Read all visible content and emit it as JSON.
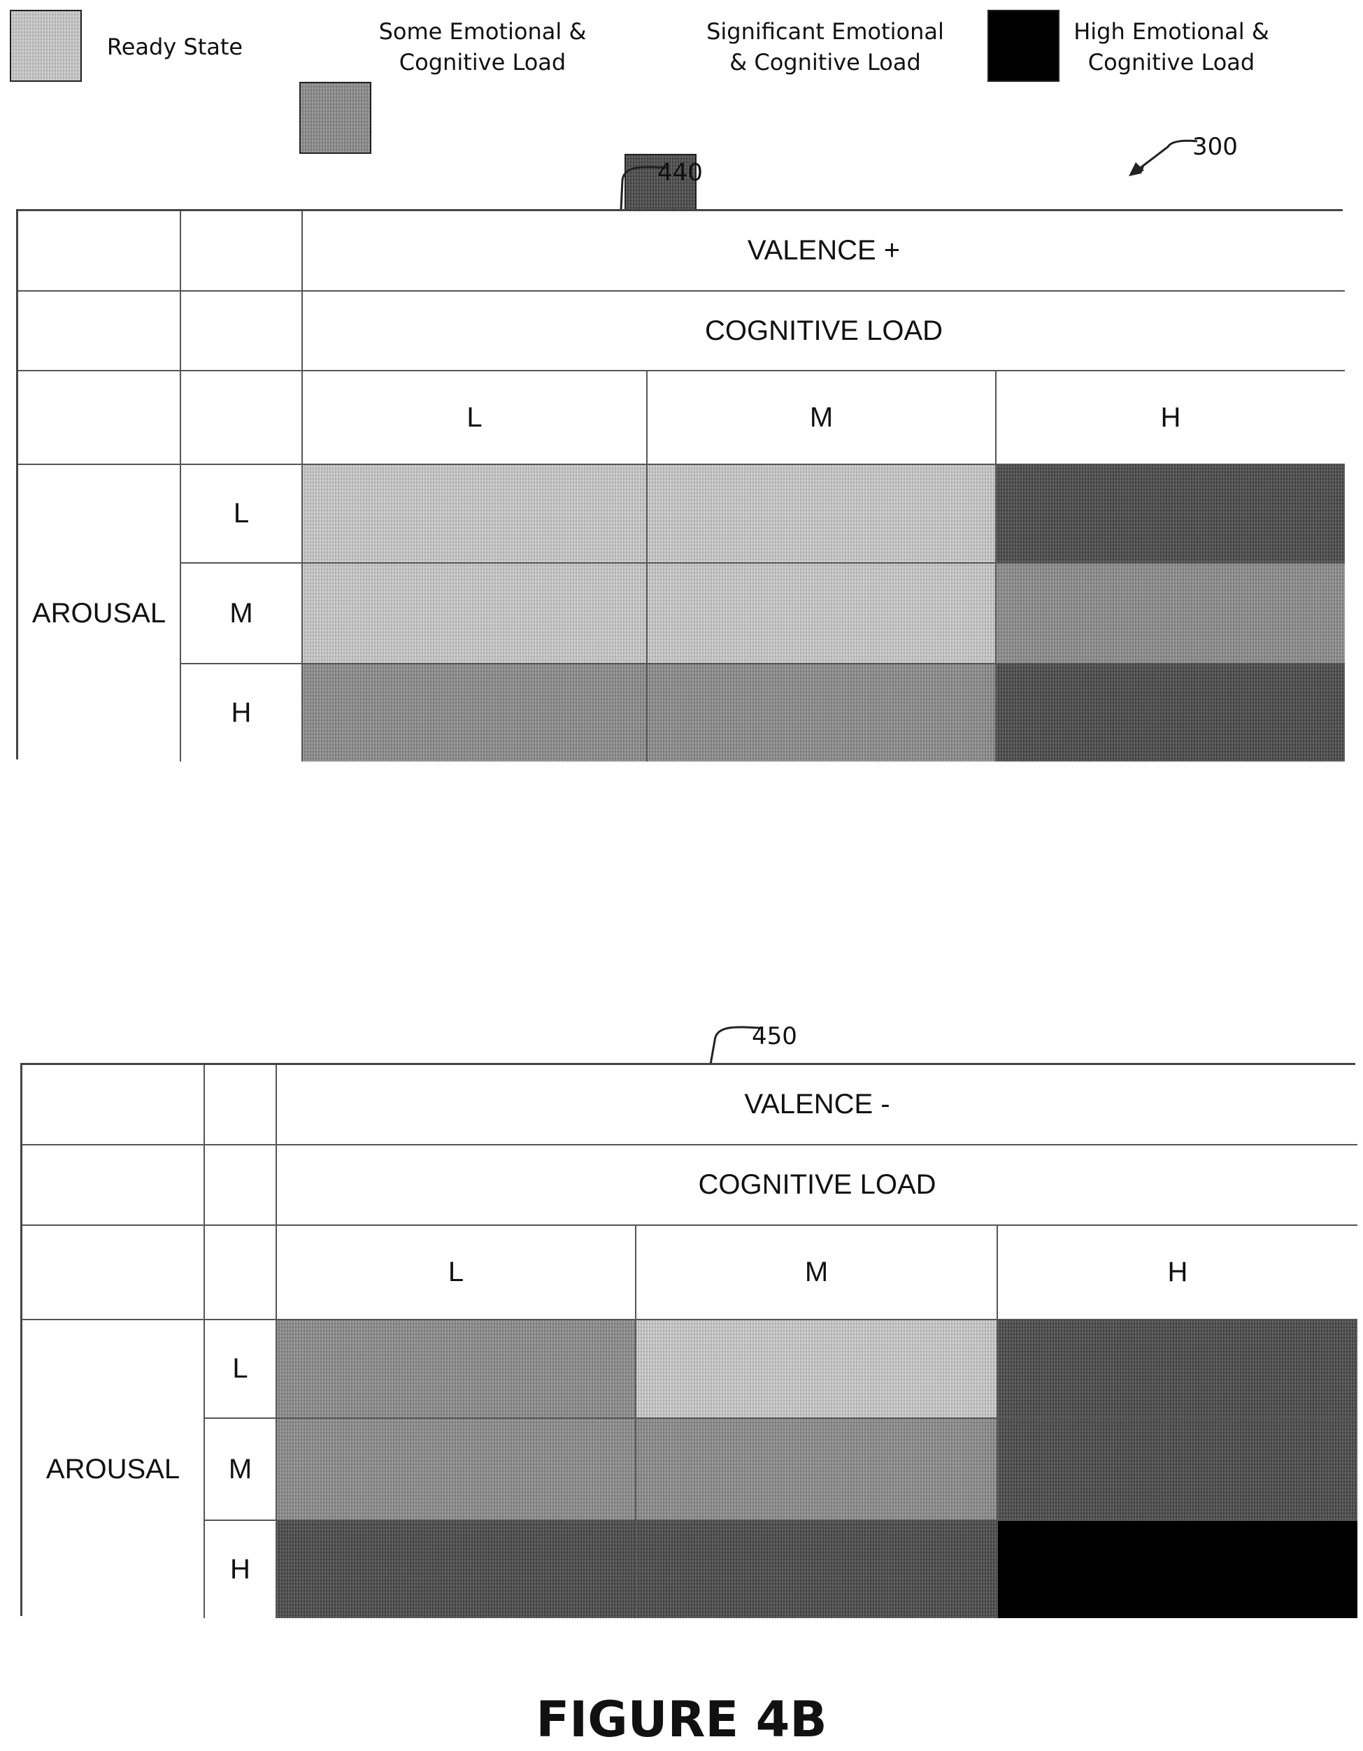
{
  "legend": [
    {
      "label": "Ready State",
      "color": "#c9c9c9"
    },
    {
      "label": "Some Emotional &\nCognitive Load",
      "color": "#8a8a8a"
    },
    {
      "label": "Significant Emotional\n& Cognitive Load",
      "color": "#474747"
    },
    {
      "label": "High Emotional &\nCognitive Load",
      "color": "#000000"
    }
  ],
  "figure_ref": "300",
  "tables": [
    {
      "ref": "440",
      "valence": "VALENCE +",
      "cognitive_load": "COGNITIVE LOAD",
      "columns": [
        "L",
        "M",
        "H"
      ],
      "arousal_label": "AROUSAL",
      "rows": [
        {
          "label": "L",
          "levels": [
            "ready",
            "ready",
            "significant"
          ]
        },
        {
          "label": "M",
          "levels": [
            "ready",
            "ready",
            "some"
          ]
        },
        {
          "label": "H",
          "levels": [
            "some",
            "some",
            "significant"
          ]
        }
      ]
    },
    {
      "ref": "450",
      "valence": "VALENCE -",
      "cognitive_load": "COGNITIVE LOAD",
      "columns": [
        "L",
        "M",
        "H"
      ],
      "arousal_label": "AROUSAL",
      "rows": [
        {
          "label": "L",
          "levels": [
            "some",
            "ready",
            "significant"
          ]
        },
        {
          "label": "M",
          "levels": [
            "some",
            "some",
            "significant"
          ]
        },
        {
          "label": "H",
          "levels": [
            "significant",
            "significant",
            "high"
          ]
        }
      ]
    }
  ],
  "caption": "FIGURE 4B"
}
